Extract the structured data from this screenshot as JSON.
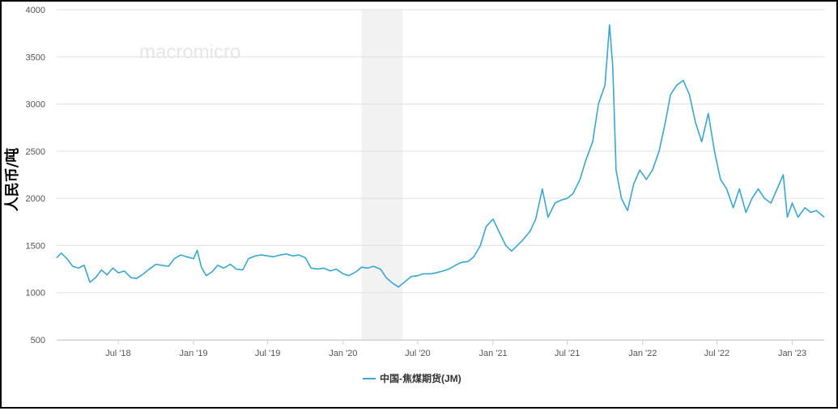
{
  "chart_data": {
    "type": "line",
    "title": "",
    "xlabel": "",
    "ylabel": "人民币/吨",
    "ylim": [
      500,
      4000
    ],
    "yticks": [
      500,
      1000,
      1500,
      2000,
      2500,
      3000,
      3500,
      4000
    ],
    "xlim": [
      "2018-02-01",
      "2023-03-20"
    ],
    "xticks": [
      {
        "date": "2018-07-01",
        "label": "Jul '18"
      },
      {
        "date": "2019-01-01",
        "label": "Jan '19"
      },
      {
        "date": "2019-07-01",
        "label": "Jul '19"
      },
      {
        "date": "2020-01-01",
        "label": "Jan '20"
      },
      {
        "date": "2020-07-01",
        "label": "Jul '20"
      },
      {
        "date": "2021-01-01",
        "label": "Jan '21"
      },
      {
        "date": "2021-07-01",
        "label": "Jul '21"
      },
      {
        "date": "2022-01-01",
        "label": "Jan '22"
      },
      {
        "date": "2022-07-01",
        "label": "Jul '22"
      },
      {
        "date": "2023-01-01",
        "label": "Jan '23"
      }
    ],
    "grid": true,
    "legend_position": "bottom",
    "shaded_region": {
      "start": "2020-02-15",
      "end": "2020-05-25",
      "color": "#f2f2f2"
    },
    "series": [
      {
        "name": "中国-焦煤期货(JM)",
        "color": "#3aa6d0",
        "points": [
          [
            "2018-02-01",
            1370
          ],
          [
            "2018-02-12",
            1420
          ],
          [
            "2018-02-26",
            1360
          ],
          [
            "2018-03-12",
            1280
          ],
          [
            "2018-03-26",
            1260
          ],
          [
            "2018-04-09",
            1290
          ],
          [
            "2018-04-23",
            1110
          ],
          [
            "2018-05-07",
            1160
          ],
          [
            "2018-05-21",
            1240
          ],
          [
            "2018-06-04",
            1190
          ],
          [
            "2018-06-18",
            1260
          ],
          [
            "2018-07-02",
            1210
          ],
          [
            "2018-07-16",
            1230
          ],
          [
            "2018-08-01",
            1160
          ],
          [
            "2018-08-15",
            1150
          ],
          [
            "2018-09-01",
            1200
          ],
          [
            "2018-09-15",
            1250
          ],
          [
            "2018-10-01",
            1300
          ],
          [
            "2018-10-15",
            1290
          ],
          [
            "2018-11-01",
            1280
          ],
          [
            "2018-11-15",
            1360
          ],
          [
            "2018-12-01",
            1400
          ],
          [
            "2018-12-15",
            1380
          ],
          [
            "2019-01-01",
            1360
          ],
          [
            "2019-01-10",
            1450
          ],
          [
            "2019-01-20",
            1270
          ],
          [
            "2019-02-01",
            1180
          ],
          [
            "2019-02-15",
            1220
          ],
          [
            "2019-03-01",
            1290
          ],
          [
            "2019-03-15",
            1260
          ],
          [
            "2019-04-01",
            1300
          ],
          [
            "2019-04-15",
            1250
          ],
          [
            "2019-05-01",
            1240
          ],
          [
            "2019-05-15",
            1360
          ],
          [
            "2019-06-01",
            1390
          ],
          [
            "2019-06-15",
            1400
          ],
          [
            "2019-07-01",
            1390
          ],
          [
            "2019-07-15",
            1380
          ],
          [
            "2019-08-01",
            1400
          ],
          [
            "2019-08-15",
            1410
          ],
          [
            "2019-09-01",
            1390
          ],
          [
            "2019-09-15",
            1400
          ],
          [
            "2019-10-01",
            1370
          ],
          [
            "2019-10-15",
            1260
          ],
          [
            "2019-11-01",
            1250
          ],
          [
            "2019-11-15",
            1260
          ],
          [
            "2019-12-01",
            1230
          ],
          [
            "2019-12-15",
            1250
          ],
          [
            "2020-01-01",
            1200
          ],
          [
            "2020-01-15",
            1180
          ],
          [
            "2020-02-01",
            1220
          ],
          [
            "2020-02-15",
            1270
          ],
          [
            "2020-03-01",
            1260
          ],
          [
            "2020-03-15",
            1280
          ],
          [
            "2020-04-01",
            1250
          ],
          [
            "2020-04-15",
            1160
          ],
          [
            "2020-05-01",
            1100
          ],
          [
            "2020-05-15",
            1060
          ],
          [
            "2020-06-01",
            1120
          ],
          [
            "2020-06-15",
            1170
          ],
          [
            "2020-07-01",
            1180
          ],
          [
            "2020-07-15",
            1200
          ],
          [
            "2020-08-01",
            1200
          ],
          [
            "2020-08-15",
            1210
          ],
          [
            "2020-09-01",
            1230
          ],
          [
            "2020-09-15",
            1250
          ],
          [
            "2020-10-01",
            1290
          ],
          [
            "2020-10-15",
            1320
          ],
          [
            "2020-11-01",
            1330
          ],
          [
            "2020-11-15",
            1380
          ],
          [
            "2020-12-01",
            1500
          ],
          [
            "2020-12-15",
            1700
          ],
          [
            "2021-01-01",
            1780
          ],
          [
            "2021-01-15",
            1650
          ],
          [
            "2021-02-01",
            1500
          ],
          [
            "2021-02-15",
            1440
          ],
          [
            "2021-03-01",
            1500
          ],
          [
            "2021-03-15",
            1560
          ],
          [
            "2021-04-01",
            1650
          ],
          [
            "2021-04-15",
            1780
          ],
          [
            "2021-05-01",
            2100
          ],
          [
            "2021-05-15",
            1800
          ],
          [
            "2021-06-01",
            1950
          ],
          [
            "2021-06-15",
            1980
          ],
          [
            "2021-07-01",
            2000
          ],
          [
            "2021-07-15",
            2050
          ],
          [
            "2021-08-01",
            2200
          ],
          [
            "2021-08-15",
            2400
          ],
          [
            "2021-09-01",
            2600
          ],
          [
            "2021-09-15",
            3000
          ],
          [
            "2021-10-01",
            3200
          ],
          [
            "2021-10-12",
            3840
          ],
          [
            "2021-10-20",
            3400
          ],
          [
            "2021-10-28",
            2300
          ],
          [
            "2021-11-10",
            2000
          ],
          [
            "2021-11-25",
            1870
          ],
          [
            "2021-12-10",
            2150
          ],
          [
            "2021-12-25",
            2300
          ],
          [
            "2022-01-10",
            2200
          ],
          [
            "2022-01-25",
            2300
          ],
          [
            "2022-02-10",
            2500
          ],
          [
            "2022-02-25",
            2800
          ],
          [
            "2022-03-10",
            3100
          ],
          [
            "2022-03-25",
            3200
          ],
          [
            "2022-04-10",
            3250
          ],
          [
            "2022-04-25",
            3100
          ],
          [
            "2022-05-10",
            2800
          ],
          [
            "2022-05-25",
            2600
          ],
          [
            "2022-06-10",
            2900
          ],
          [
            "2022-06-25",
            2500
          ],
          [
            "2022-07-10",
            2200
          ],
          [
            "2022-07-25",
            2100
          ],
          [
            "2022-08-10",
            1900
          ],
          [
            "2022-08-25",
            2100
          ],
          [
            "2022-09-10",
            1850
          ],
          [
            "2022-09-25",
            2000
          ],
          [
            "2022-10-10",
            2100
          ],
          [
            "2022-10-25",
            2000
          ],
          [
            "2022-11-10",
            1950
          ],
          [
            "2022-11-25",
            2100
          ],
          [
            "2022-12-10",
            2250
          ],
          [
            "2022-12-20",
            1800
          ],
          [
            "2023-01-01",
            1950
          ],
          [
            "2023-01-15",
            1800
          ],
          [
            "2023-02-01",
            1900
          ],
          [
            "2023-02-15",
            1850
          ],
          [
            "2023-03-01",
            1870
          ],
          [
            "2023-03-20",
            1800
          ]
        ]
      }
    ]
  },
  "watermark": "macromicro"
}
